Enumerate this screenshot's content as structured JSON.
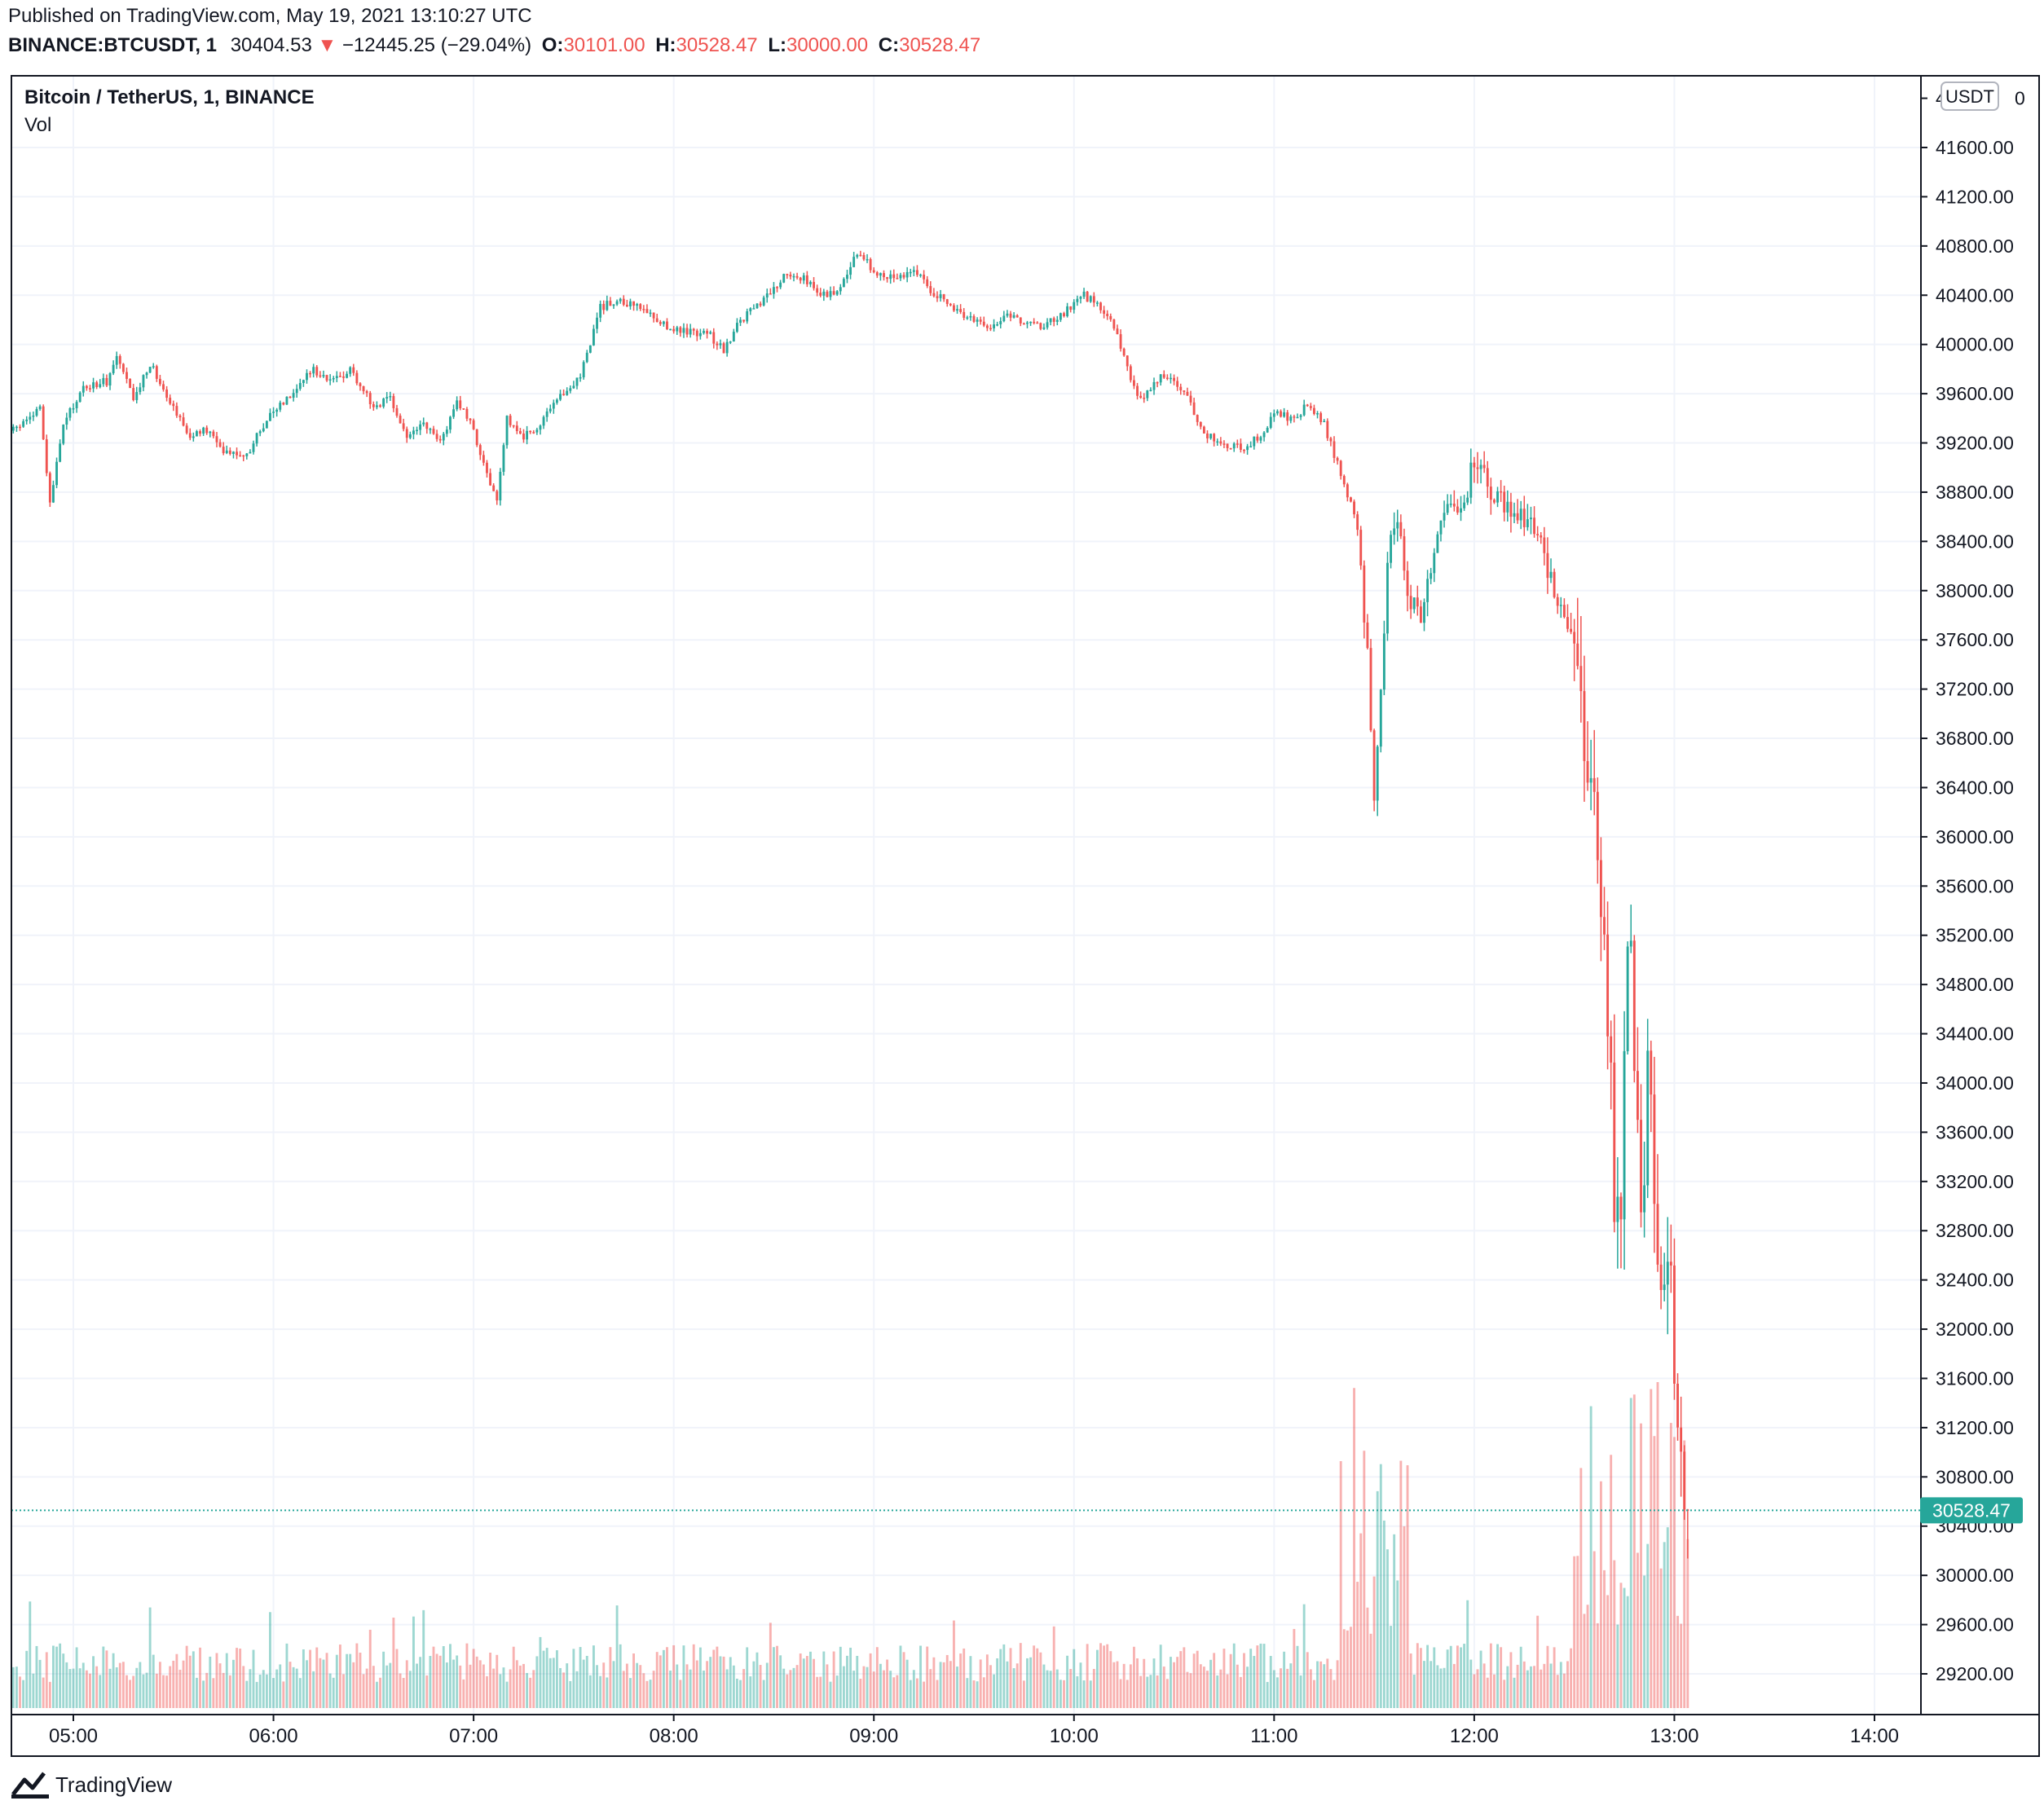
{
  "header": {
    "published": "Published on TradingView.com, May 19, 2021 13:10:27 UTC",
    "symbol": "BINANCE:BTCUSDT, 1",
    "last": "30404.53",
    "arrow": "▼",
    "change": "−12445.25 (−29.04%)",
    "o_label": "O:",
    "o_value": "30101.00",
    "h_label": "H:",
    "h_value": "30528.47",
    "l_label": "L:",
    "l_value": "30000.00",
    "c_label": "C:",
    "c_value": "30528.47"
  },
  "legend": {
    "title": "Bitcoin / TetherUS, 1, BINANCE",
    "indicator": "Vol"
  },
  "currency_badge": "USDT",
  "price_tag": "30528.47",
  "footer": {
    "brand": "TradingView"
  },
  "colors": {
    "up": "#26a69a",
    "down": "#ef5350",
    "grid": "#f0f3fa",
    "border": "#131722",
    "tag": "#26a69a"
  },
  "chart_data": {
    "type": "candlestick",
    "y_ticks": [
      "41600.00",
      "41200.00",
      "40800.00",
      "40400.00",
      "40000.00",
      "39600.00",
      "39200.00",
      "38800.00",
      "38400.00",
      "38000.00",
      "37600.00",
      "37200.00",
      "36800.00",
      "36400.00",
      "36000.00",
      "35600.00",
      "35200.00",
      "34800.00",
      "34400.00",
      "34000.00",
      "33600.00",
      "33200.00",
      "32800.00",
      "32400.00",
      "32000.00",
      "31600.00",
      "31200.00",
      "30800.00",
      "30400.00",
      "30000.00",
      "29600.00",
      "29200.00"
    ],
    "top_tick_partial": "4",
    "top_tick_suffix": "0",
    "ylim": [
      28930,
      42100
    ],
    "x_ticks": [
      "05:00",
      "06:00",
      "07:00",
      "08:00",
      "09:00",
      "10:00",
      "11:00",
      "12:00",
      "13:00",
      "14:00"
    ],
    "x_tick_minutes": [
      300,
      360,
      420,
      480,
      540,
      600,
      660,
      720,
      780,
      840
    ],
    "xlim_minutes": [
      281,
      860
    ],
    "last_price": 30528.47,
    "price_path": [
      [
        282,
        39300
      ],
      [
        290,
        39480
      ],
      [
        293,
        38700
      ],
      [
        297,
        39350
      ],
      [
        303,
        39650
      ],
      [
        310,
        39700
      ],
      [
        313,
        39900
      ],
      [
        318,
        39550
      ],
      [
        323,
        39850
      ],
      [
        328,
        39600
      ],
      [
        335,
        39250
      ],
      [
        340,
        39300
      ],
      [
        345,
        39150
      ],
      [
        352,
        39100
      ],
      [
        358,
        39400
      ],
      [
        365,
        39600
      ],
      [
        372,
        39800
      ],
      [
        378,
        39700
      ],
      [
        383,
        39800
      ],
      [
        390,
        39500
      ],
      [
        395,
        39550
      ],
      [
        400,
        39250
      ],
      [
        405,
        39350
      ],
      [
        410,
        39200
      ],
      [
        415,
        39550
      ],
      [
        420,
        39300
      ],
      [
        427,
        38700
      ],
      [
        430,
        39400
      ],
      [
        435,
        39250
      ],
      [
        440,
        39350
      ],
      [
        447,
        39600
      ],
      [
        452,
        39750
      ],
      [
        458,
        40300
      ],
      [
        462,
        40350
      ],
      [
        470,
        40300
      ],
      [
        478,
        40150
      ],
      [
        484,
        40100
      ],
      [
        490,
        40100
      ],
      [
        495,
        39950
      ],
      [
        500,
        40200
      ],
      [
        507,
        40350
      ],
      [
        513,
        40550
      ],
      [
        519,
        40550
      ],
      [
        524,
        40400
      ],
      [
        530,
        40450
      ],
      [
        535,
        40750
      ],
      [
        540,
        40600
      ],
      [
        546,
        40550
      ],
      [
        552,
        40600
      ],
      [
        557,
        40450
      ],
      [
        563,
        40300
      ],
      [
        570,
        40200
      ],
      [
        575,
        40150
      ],
      [
        580,
        40250
      ],
      [
        586,
        40150
      ],
      [
        591,
        40150
      ],
      [
        597,
        40250
      ],
      [
        603,
        40400
      ],
      [
        608,
        40300
      ],
      [
        613,
        40100
      ],
      [
        617,
        39700
      ],
      [
        620,
        39550
      ],
      [
        626,
        39750
      ],
      [
        632,
        39650
      ],
      [
        636,
        39450
      ],
      [
        640,
        39250
      ],
      [
        645,
        39200
      ],
      [
        650,
        39150
      ],
      [
        656,
        39250
      ],
      [
        660,
        39450
      ],
      [
        665,
        39400
      ],
      [
        670,
        39500
      ],
      [
        675,
        39350
      ],
      [
        680,
        38950
      ],
      [
        685,
        38550
      ],
      [
        688,
        37500
      ],
      [
        690,
        36400
      ],
      [
        692,
        37200
      ],
      [
        694,
        38300
      ],
      [
        697,
        38500
      ],
      [
        700,
        38000
      ],
      [
        704,
        37800
      ],
      [
        708,
        38400
      ],
      [
        712,
        38800
      ],
      [
        716,
        38650
      ],
      [
        720,
        39050
      ],
      [
        724,
        38850
      ],
      [
        728,
        38700
      ],
      [
        732,
        38650
      ],
      [
        736,
        38550
      ],
      [
        740,
        38350
      ],
      [
        743,
        38050
      ],
      [
        747,
        37750
      ],
      [
        751,
        37650
      ],
      [
        753,
        36450
      ],
      [
        756,
        36400
      ],
      [
        758,
        35300
      ],
      [
        760,
        34600
      ],
      [
        762,
        33200
      ],
      [
        764,
        32600
      ],
      [
        766,
        35300
      ],
      [
        768,
        34400
      ],
      [
        770,
        33000
      ],
      [
        772,
        34000
      ],
      [
        774,
        33200
      ],
      [
        776,
        32500
      ],
      [
        778,
        32700
      ],
      [
        780,
        31900
      ],
      [
        782,
        31000
      ],
      [
        783,
        30400
      ],
      [
        784,
        30528
      ]
    ],
    "volume_bars": "approx_series_volume",
    "volume_max_note": "Vol"
  }
}
